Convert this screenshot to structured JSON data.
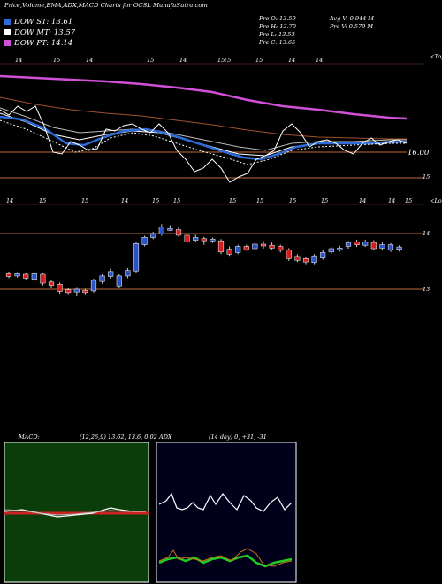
{
  "header": {
    "title": "Price,Volume,EMA,ADX,MACD Charts for OCSL MunafaSutra.com",
    "legend": [
      {
        "label": "DOW ST: 13.61",
        "color": "#2f6bd8"
      },
      {
        "label": "DOW MT: 13.57",
        "color": "#ffffff"
      },
      {
        "label": "DOW PT: 14.14",
        "color": "#d050d8"
      }
    ],
    "ohlc": {
      "open": "Pre O: 13.59",
      "high": "Pre H: 13.70",
      "low": "Pre L: 13.53",
      "close": "Pre C: 13.65",
      "avg_vol": "Avg V: 0.944 M",
      "vol": "Pre V: 0.579 M"
    }
  },
  "upper_panel": {
    "top_label": "<Topo",
    "price_level": "16.00",
    "right_tick": "15",
    "top_marks": [
      "14",
      "15",
      "14",
      "15",
      "14",
      "15",
      "15",
      "15",
      "14",
      "14"
    ],
    "bottom_marks": [
      "14",
      "15",
      "15",
      "14",
      "15",
      "15",
      "15",
      "15",
      "15",
      "15",
      "14",
      "14",
      "15"
    ]
  },
  "lower_panel": {
    "top_label": "<Lowo",
    "ticks": [
      "14",
      "13"
    ]
  },
  "macd": {
    "label": "MACD:",
    "params": "(12,26,9) 13.62, 13.6, 0.02"
  },
  "adx": {
    "label": "ADX",
    "params": "(14 day) 0, +31, -31"
  },
  "chart_data": {
    "type": "candlestick",
    "ylabel": "",
    "ylim": [
      12.8,
      14.4
    ],
    "candles": [
      {
        "o": 13.28,
        "c": 13.23,
        "h": 13.32,
        "l": 13.2
      },
      {
        "o": 13.24,
        "c": 13.28,
        "h": 13.31,
        "l": 13.21
      },
      {
        "o": 13.27,
        "c": 13.2,
        "h": 13.3,
        "l": 13.17
      },
      {
        "o": 13.18,
        "c": 13.28,
        "h": 13.31,
        "l": 13.15
      },
      {
        "o": 13.27,
        "c": 13.11,
        "h": 13.3,
        "l": 13.07
      },
      {
        "o": 13.13,
        "c": 13.07,
        "h": 13.16,
        "l": 13.03
      },
      {
        "o": 13.09,
        "c": 12.96,
        "h": 13.12,
        "l": 12.92
      },
      {
        "o": 12.99,
        "c": 12.94,
        "h": 13.02,
        "l": 12.91
      },
      {
        "o": 12.95,
        "c": 13.0,
        "h": 13.04,
        "l": 12.88
      },
      {
        "o": 12.98,
        "c": 12.94,
        "h": 13.01,
        "l": 12.91
      },
      {
        "o": 12.97,
        "c": 13.16,
        "h": 13.19,
        "l": 12.94
      },
      {
        "o": 13.14,
        "c": 13.24,
        "h": 13.27,
        "l": 13.1
      },
      {
        "o": 13.23,
        "c": 13.32,
        "h": 13.37,
        "l": 13.19
      },
      {
        "o": 13.06,
        "c": 13.24,
        "h": 13.27,
        "l": 13.02
      },
      {
        "o": 13.24,
        "c": 13.34,
        "h": 13.38,
        "l": 13.2
      },
      {
        "o": 13.33,
        "c": 13.82,
        "h": 13.85,
        "l": 13.3
      },
      {
        "o": 13.8,
        "c": 13.93,
        "h": 13.96,
        "l": 13.77
      },
      {
        "o": 13.93,
        "c": 14.0,
        "h": 14.03,
        "l": 13.9
      },
      {
        "o": 13.99,
        "c": 14.12,
        "h": 14.17,
        "l": 13.96
      },
      {
        "o": 14.09,
        "c": 14.09,
        "h": 14.15,
        "l": 14.05
      },
      {
        "o": 14.07,
        "c": 13.97,
        "h": 14.12,
        "l": 13.94
      },
      {
        "o": 13.97,
        "c": 13.85,
        "h": 14.0,
        "l": 13.8
      },
      {
        "o": 13.88,
        "c": 13.93,
        "h": 13.98,
        "l": 13.84
      },
      {
        "o": 13.91,
        "c": 13.87,
        "h": 13.94,
        "l": 13.8
      },
      {
        "o": 13.89,
        "c": 13.9,
        "h": 13.93,
        "l": 13.83
      },
      {
        "o": 13.87,
        "c": 13.67,
        "h": 13.9,
        "l": 13.63
      },
      {
        "o": 13.72,
        "c": 13.63,
        "h": 13.77,
        "l": 13.6
      },
      {
        "o": 13.66,
        "c": 13.77,
        "h": 13.8,
        "l": 13.63
      },
      {
        "o": 13.77,
        "c": 13.71,
        "h": 13.8,
        "l": 13.69
      },
      {
        "o": 13.73,
        "c": 13.81,
        "h": 13.84,
        "l": 13.72
      },
      {
        "o": 13.81,
        "c": 13.8,
        "h": 13.87,
        "l": 13.73
      },
      {
        "o": 13.79,
        "c": 13.74,
        "h": 13.84,
        "l": 13.7
      },
      {
        "o": 13.77,
        "c": 13.7,
        "h": 13.8,
        "l": 13.66
      },
      {
        "o": 13.71,
        "c": 13.55,
        "h": 13.74,
        "l": 13.51
      },
      {
        "o": 13.59,
        "c": 13.52,
        "h": 13.63,
        "l": 13.49
      },
      {
        "o": 13.55,
        "c": 13.49,
        "h": 13.58,
        "l": 13.45
      },
      {
        "o": 13.48,
        "c": 13.6,
        "h": 13.63,
        "l": 13.45
      },
      {
        "o": 13.56,
        "c": 13.66,
        "h": 13.7,
        "l": 13.53
      },
      {
        "o": 13.67,
        "c": 13.73,
        "h": 13.76,
        "l": 13.63
      },
      {
        "o": 13.71,
        "c": 13.74,
        "h": 13.78,
        "l": 13.68
      },
      {
        "o": 13.77,
        "c": 13.84,
        "h": 13.87,
        "l": 13.73
      },
      {
        "o": 13.85,
        "c": 13.8,
        "h": 13.89,
        "l": 13.76
      },
      {
        "o": 13.79,
        "c": 13.85,
        "h": 13.89,
        "l": 13.76
      },
      {
        "o": 13.84,
        "c": 13.73,
        "h": 13.88,
        "l": 13.7
      },
      {
        "o": 13.74,
        "c": 13.8,
        "h": 13.84,
        "l": 13.71
      },
      {
        "o": 13.71,
        "c": 13.8,
        "h": 13.83,
        "l": 13.67
      },
      {
        "o": 13.72,
        "c": 13.76,
        "h": 13.79,
        "l": 13.68
      }
    ]
  }
}
